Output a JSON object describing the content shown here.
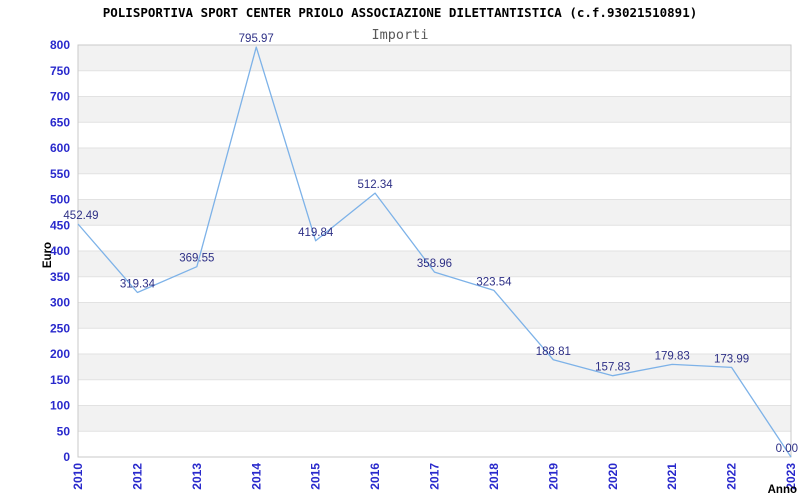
{
  "chart_data": {
    "type": "line",
    "title": "POLISPORTIVA SPORT CENTER PRIOLO ASSOCIAZIONE DILETTANTISTICA (c.f.93021510891)",
    "subtitle": "Importi",
    "xlabel": "Anno",
    "ylabel": "Euro",
    "categories": [
      "2010",
      "2012",
      "2013",
      "2014",
      "2015",
      "2016",
      "2017",
      "2018",
      "2019",
      "2020",
      "2021",
      "2022",
      "2023"
    ],
    "values": [
      452.49,
      319.34,
      369.55,
      795.97,
      419.84,
      512.34,
      358.96,
      323.54,
      188.81,
      157.83,
      179.83,
      173.99,
      0.0
    ],
    "point_labels": [
      "452.49",
      "319.34",
      "369.55",
      "795.97",
      "419.84",
      "512.34",
      "358.96",
      "323.54",
      "188.81",
      "157.83",
      "179.83",
      "173.99",
      "0.00"
    ],
    "ylim": [
      0,
      800
    ],
    "ytick_step": 50,
    "grid": "horizontal-bands-alternating",
    "legend": "none",
    "colors": {
      "line": "#7db2e8",
      "tick_label": "#2929cc",
      "point_label": "#2e3086",
      "band": "#f2f2f2",
      "gridline": "#e2e2e2",
      "border": "#c9c9c9",
      "title": "#000000",
      "subtitle": "#595959",
      "axis_title": "#000000",
      "background": "#ffffff"
    }
  }
}
